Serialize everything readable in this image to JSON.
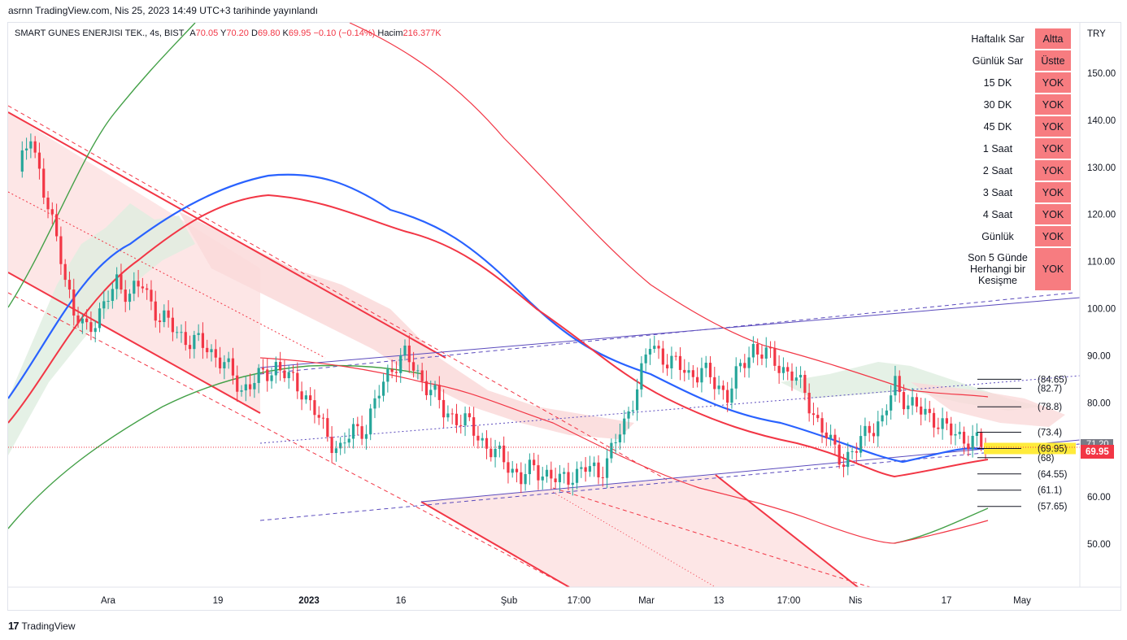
{
  "published_text": "asrnn TradingView.com, Nis 25, 2023 14:49 UTC+3 tarihinde yayınlandı",
  "legend": {
    "symbol": "SMART GUNES ENERJISI TEK., 4s, BIST",
    "open_label": "A",
    "open": "70.05",
    "high_label": "Y",
    "high": "70.20",
    "low_label": "D",
    "low": "69.80",
    "close_label": "K",
    "close": "69.95",
    "change": "−0.10 (−0.14%)",
    "volume_label": "Hacim",
    "volume": "216.377K"
  },
  "currency": "TRY",
  "last_price_tag": "69.95",
  "partial_tag": "71.20",
  "signal_table": [
    {
      "name": "Haftalık Sar",
      "status": "Altta"
    },
    {
      "name": "Günlük Sar",
      "status": "Üstte"
    },
    {
      "name": "15 DK",
      "status": "YOK"
    },
    {
      "name": "30 DK",
      "status": "YOK"
    },
    {
      "name": "45 DK",
      "status": "YOK"
    },
    {
      "name": "1 Saat",
      "status": "YOK"
    },
    {
      "name": "2 Saat",
      "status": "YOK"
    },
    {
      "name": "3 Saat",
      "status": "YOK"
    },
    {
      "name": "4 Saat",
      "status": "YOK"
    },
    {
      "name": "Günlük",
      "status": "YOK"
    },
    {
      "name": "Son 5 Günde Herhangi bir Kesişme",
      "status": "YOK"
    }
  ],
  "colors": {
    "up": "#26a69a",
    "down": "#f23645",
    "ma_blue": "#2962ff",
    "ma_red": "#f23645",
    "ma_green": "#43a047",
    "channel_fill": "#fde2e2",
    "cloud_green": "#dfeee0",
    "cloud_red": "#fad9d9",
    "highlight": "#ffeb3b",
    "channel_line": "#5b4bbd",
    "status_bg": "#f77c80"
  },
  "brand": "TradingView",
  "chart_data": {
    "type": "candlestick",
    "title": "SMART GUNES ENERJISI TEK., 4s, BIST",
    "ylabel": "TRY",
    "y_ticks": [
      50,
      60,
      70,
      80,
      90,
      100,
      110,
      120,
      130,
      140,
      150
    ],
    "y_tick_labels": [
      "50.00",
      "60.00",
      "",
      "80.00",
      "90.00",
      "100.00",
      "110.00",
      "120.00",
      "130.00",
      "140.00",
      "150.00"
    ],
    "ylim": [
      44,
      160
    ],
    "x_ticks": [
      "Ara",
      "19",
      "2023",
      "16",
      "Şub",
      "17:00",
      "Mar",
      "13",
      "17:00",
      "Nis",
      "17",
      "May"
    ],
    "last_close": 69.95,
    "levels": [
      {
        "label": "(84.65)",
        "value": 84.65
      },
      {
        "label": "(82.7)",
        "value": 82.7
      },
      {
        "label": "(78.8)",
        "value": 78.8
      },
      {
        "label": "(73.4)",
        "value": 73.4
      },
      {
        "label": "(69.95)",
        "value": 69.95
      },
      {
        "label": "(68)",
        "value": 68
      },
      {
        "label": "(64.55)",
        "value": 64.55
      },
      {
        "label": "(61.1)",
        "value": 61.1
      },
      {
        "label": "(57.65)",
        "value": 57.65
      }
    ],
    "close_path": [
      [
        0,
        128
      ],
      [
        3,
        138
      ],
      [
        6,
        124
      ],
      [
        10,
        112
      ],
      [
        13,
        98
      ],
      [
        16,
        96
      ],
      [
        20,
        100
      ],
      [
        23,
        106
      ],
      [
        26,
        103
      ],
      [
        29,
        105
      ],
      [
        33,
        98
      ],
      [
        36,
        96
      ],
      [
        40,
        93
      ],
      [
        44,
        92
      ],
      [
        48,
        88
      ],
      [
        52,
        83
      ],
      [
        56,
        85
      ],
      [
        60,
        88
      ],
      [
        63,
        85
      ],
      [
        66,
        83
      ],
      [
        69,
        78
      ],
      [
        72,
        73
      ],
      [
        75,
        70
      ],
      [
        78,
        74
      ],
      [
        81,
        75
      ],
      [
        84,
        82
      ],
      [
        87,
        88
      ],
      [
        90,
        90
      ],
      [
        93,
        86
      ],
      [
        96,
        83
      ],
      [
        99,
        78
      ],
      [
        102,
        77
      ],
      [
        105,
        75
      ],
      [
        108,
        72
      ],
      [
        111,
        69
      ],
      [
        114,
        67
      ],
      [
        117,
        64
      ],
      [
        120,
        66
      ],
      [
        123,
        65
      ],
      [
        126,
        63
      ],
      [
        129,
        65
      ],
      [
        132,
        66
      ],
      [
        135,
        65
      ],
      [
        138,
        70
      ],
      [
        141,
        75
      ],
      [
        144,
        84
      ],
      [
        147,
        92
      ],
      [
        150,
        90
      ],
      [
        153,
        88
      ],
      [
        156,
        86
      ],
      [
        159,
        87
      ],
      [
        162,
        84
      ],
      [
        165,
        82
      ],
      [
        168,
        87
      ],
      [
        171,
        92
      ],
      [
        174,
        90
      ],
      [
        177,
        88
      ],
      [
        180,
        86
      ],
      [
        183,
        82
      ],
      [
        186,
        76
      ],
      [
        189,
        71
      ],
      [
        192,
        68
      ],
      [
        195,
        70
      ],
      [
        198,
        75
      ],
      [
        201,
        76
      ],
      [
        204,
        84
      ],
      [
        207,
        80
      ],
      [
        210,
        78
      ],
      [
        213,
        77
      ],
      [
        216,
        74
      ],
      [
        219,
        73
      ],
      [
        222,
        72
      ],
      [
        225,
        70
      ]
    ]
  }
}
